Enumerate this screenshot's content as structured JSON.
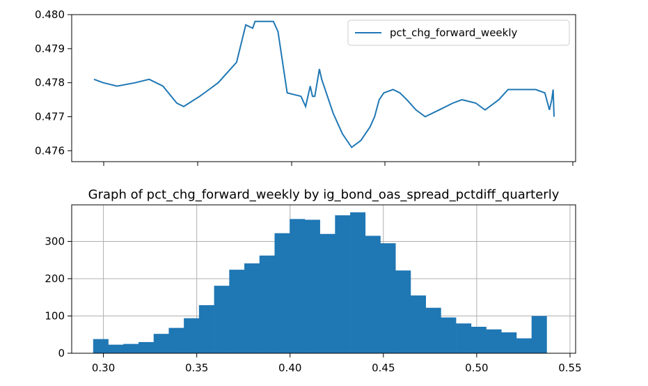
{
  "chart_data": [
    {
      "type": "line",
      "title": "",
      "xlabel": "",
      "ylabel": "",
      "x_range": [
        0,
        1
      ],
      "ylim": [
        0.47568,
        0.48
      ],
      "yticks": [
        0.476,
        0.477,
        0.478,
        0.479,
        0.48
      ],
      "ytick_labels": [
        "0.476",
        "0.477",
        "0.478",
        "0.479",
        "0.480"
      ],
      "grid": false,
      "legend": {
        "position": "top-right",
        "entries": [
          "pct_chg_forward_weekly"
        ]
      },
      "series": [
        {
          "name": "pct_chg_forward_weekly",
          "color": "#1f77b4",
          "x": [
            0.0,
            0.02,
            0.05,
            0.09,
            0.12,
            0.15,
            0.18,
            0.195,
            0.23,
            0.25,
            0.27,
            0.31,
            0.33,
            0.345,
            0.35,
            0.36,
            0.38,
            0.39,
            0.4,
            0.42,
            0.45,
            0.46,
            0.47,
            0.475,
            0.48,
            0.49,
            0.495,
            0.5,
            0.52,
            0.54,
            0.56,
            0.58,
            0.6,
            0.61,
            0.62,
            0.63,
            0.65,
            0.665,
            0.68,
            0.7,
            0.72,
            0.75,
            0.78,
            0.8,
            0.83,
            0.85,
            0.88,
            0.9,
            0.92,
            0.94,
            0.96,
            0.98,
            0.99,
            0.995,
            0.998,
            1.0
          ],
          "y": [
            0.4781,
            0.478,
            0.4779,
            0.478,
            0.4781,
            0.4779,
            0.4774,
            0.4773,
            0.4776,
            0.4778,
            0.478,
            0.4786,
            0.4797,
            0.4796,
            0.4798,
            0.4798,
            0.4798,
            0.4798,
            0.4795,
            0.4777,
            0.4776,
            0.4773,
            0.4779,
            0.4776,
            0.4776,
            0.4784,
            0.4781,
            0.4779,
            0.4771,
            0.4765,
            0.4761,
            0.4763,
            0.4767,
            0.477,
            0.4775,
            0.4777,
            0.4778,
            0.4777,
            0.4775,
            0.4772,
            0.477,
            0.4772,
            0.4774,
            0.4775,
            0.4774,
            0.4772,
            0.4775,
            0.4778,
            0.4778,
            0.4778,
            0.4778,
            0.4777,
            0.4772,
            0.4775,
            0.4778,
            0.477
          ]
        }
      ],
      "xticks": [
        0.06,
        0.25,
        0.44,
        0.63,
        0.82,
        1.0
      ]
    },
    {
      "type": "bar",
      "title": "Graph of pct_chg_forward_weekly by ig_bond_oas_spread_pctdiff_quarterly",
      "xlabel": "",
      "ylabel": "",
      "xlim": [
        0.283,
        0.553
      ],
      "ylim": [
        0,
        398
      ],
      "xticks": [
        0.3,
        0.35,
        0.4,
        0.45,
        0.5,
        0.55
      ],
      "xtick_labels": [
        "0.30",
        "0.35",
        "0.40",
        "0.45",
        "0.50",
        "0.55"
      ],
      "yticks": [
        0,
        100,
        200,
        300
      ],
      "ytick_labels": [
        "0",
        "100",
        "200",
        "300"
      ],
      "grid": true,
      "color": "#1f77b4",
      "bin_start": 0.2945,
      "bin_width": 0.0081,
      "values": [
        38,
        23,
        25,
        30,
        52,
        68,
        94,
        129,
        181,
        224,
        241,
        262,
        322,
        360,
        358,
        320,
        370,
        378,
        315,
        295,
        222,
        155,
        122,
        96,
        80,
        71,
        64,
        56,
        40,
        100
      ]
    }
  ]
}
